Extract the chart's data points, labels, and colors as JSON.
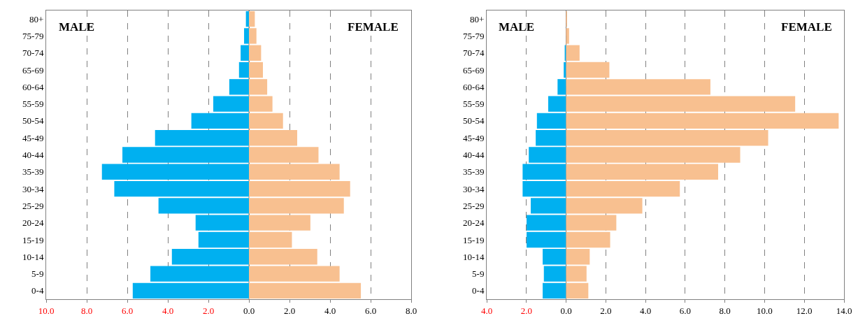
{
  "chart_data": [
    {
      "type": "bar",
      "orientation": "horizontal",
      "categories": [
        "80+",
        "75-79",
        "70-74",
        "65-69",
        "60-64",
        "55-59",
        "50-54",
        "45-49",
        "40-44",
        "35-39",
        "30-34",
        "25-29",
        "20-24",
        "15-19",
        "10-14",
        "5-9",
        "0-4"
      ],
      "series": [
        {
          "color": "#00b0f0",
          "values": [
            -0.15,
            -0.24,
            -0.41,
            -0.49,
            -0.97,
            -1.76,
            -2.84,
            -4.63,
            -6.24,
            -7.25,
            -6.64,
            -4.46,
            -2.63,
            -2.49,
            -3.8,
            -4.86,
            -5.73
          ]
        },
        {
          "color": "#f8c090",
          "values": [
            0.29,
            0.37,
            0.6,
            0.69,
            0.9,
            1.16,
            1.68,
            2.38,
            3.43,
            4.47,
            4.99,
            4.68,
            3.03,
            2.12,
            3.37,
            4.47,
            5.52
          ]
        }
      ],
      "annotations": [
        "MALE",
        "FEMALE"
      ],
      "stacked": true,
      "ref_lines": [
        {
          "axis": "x",
          "value": 0,
          "color": "#a08070"
        }
      ],
      "xlim": [
        -10,
        8
      ],
      "xticks": [
        {
          "value": -10,
          "label": "10.0"
        },
        {
          "value": -8,
          "label": "8.0"
        },
        {
          "value": -6,
          "label": "6.0"
        },
        {
          "value": -4,
          "label": "4.0"
        },
        {
          "value": -2,
          "label": "2.0"
        },
        {
          "value": 0,
          "label": "0.0"
        },
        {
          "value": 2,
          "label": "2.0"
        },
        {
          "value": 4,
          "label": "4.0"
        },
        {
          "value": 6,
          "label": "6.0"
        },
        {
          "value": 8,
          "label": "8.0"
        }
      ],
      "grid": "x"
    },
    {
      "type": "bar",
      "orientation": "horizontal",
      "categories": [
        "80+",
        "75-79",
        "70-74",
        "65-69",
        "60-64",
        "55-59",
        "50-54",
        "45-49",
        "40-44",
        "35-39",
        "30-34",
        "25-29",
        "20-24",
        "15-19",
        "10-14",
        "5-9",
        "0-4"
      ],
      "series": [
        {
          "color": "#00b0f0",
          "values": [
            0,
            0,
            -0.07,
            -0.12,
            -0.43,
            -0.9,
            -1.47,
            -1.53,
            -1.88,
            -2.19,
            -2.19,
            -1.78,
            -1.99,
            -1.99,
            -1.18,
            -1.12,
            -1.18
          ]
        },
        {
          "color": "#f8c090",
          "values": [
            0.05,
            0.15,
            0.68,
            2.18,
            7.27,
            11.54,
            13.73,
            10.18,
            8.77,
            7.66,
            5.73,
            3.84,
            2.53,
            2.22,
            1.19,
            1.03,
            1.12
          ]
        }
      ],
      "annotations": [
        "MALE",
        "FEMALE"
      ],
      "stacked": true,
      "ref_lines": [
        {
          "axis": "x",
          "value": 0,
          "color": "#a08070"
        }
      ],
      "xlim": [
        -4,
        14
      ],
      "xticks": [
        {
          "value": -4,
          "label": "4.0"
        },
        {
          "value": -2,
          "label": "2.0"
        },
        {
          "value": 0,
          "label": "0.0"
        },
        {
          "value": 2,
          "label": "2.0"
        },
        {
          "value": 4,
          "label": "4.0"
        },
        {
          "value": 6,
          "label": "6.0"
        },
        {
          "value": 8,
          "label": "8.0"
        },
        {
          "value": 10,
          "label": "10.0"
        },
        {
          "value": 12,
          "label": "12.0"
        },
        {
          "value": 14,
          "label": "14.0"
        }
      ],
      "grid": "x"
    }
  ]
}
